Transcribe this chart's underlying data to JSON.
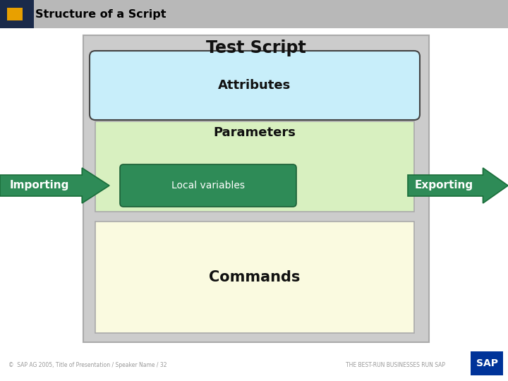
{
  "title": "Structure of a Script",
  "title_bar_color": "#b8b8b8",
  "title_bar_dark_color": "#1a2a4a",
  "title_bar_text_color": "#000000",
  "title_square_color": "#e8a000",
  "bg_color": "#ffffff",
  "outer_box_color": "#cccccc",
  "outer_box_edge": "#aaaaaa",
  "test_script_label": "Test Script",
  "attributes_label": "Attributes",
  "attributes_box_color": "#c8eefa",
  "attributes_box_edge": "#444444",
  "parameters_label": "Parameters",
  "parameters_box_color": "#d8f0c0",
  "parameters_box_edge": "#aaaaaa",
  "local_vars_label": "Local variables",
  "local_vars_box_color": "#2e8b57",
  "local_vars_box_edge": "#1a5e35",
  "commands_label": "Commands",
  "commands_box_color": "#fafae0",
  "commands_box_edge": "#aaaaaa",
  "importing_label": "Importing",
  "exporting_label": "Exporting",
  "arrow_color": "#2e8b57",
  "arrow_edge": "#1a6e3a",
  "footer_left": "©  SAP AG 2005, Title of Presentation / Speaker Name / 32",
  "footer_right": "THE BEST-RUN BUSINESSES RUN SAP",
  "footer_color": "#999999",
  "sap_bg": "#003399"
}
